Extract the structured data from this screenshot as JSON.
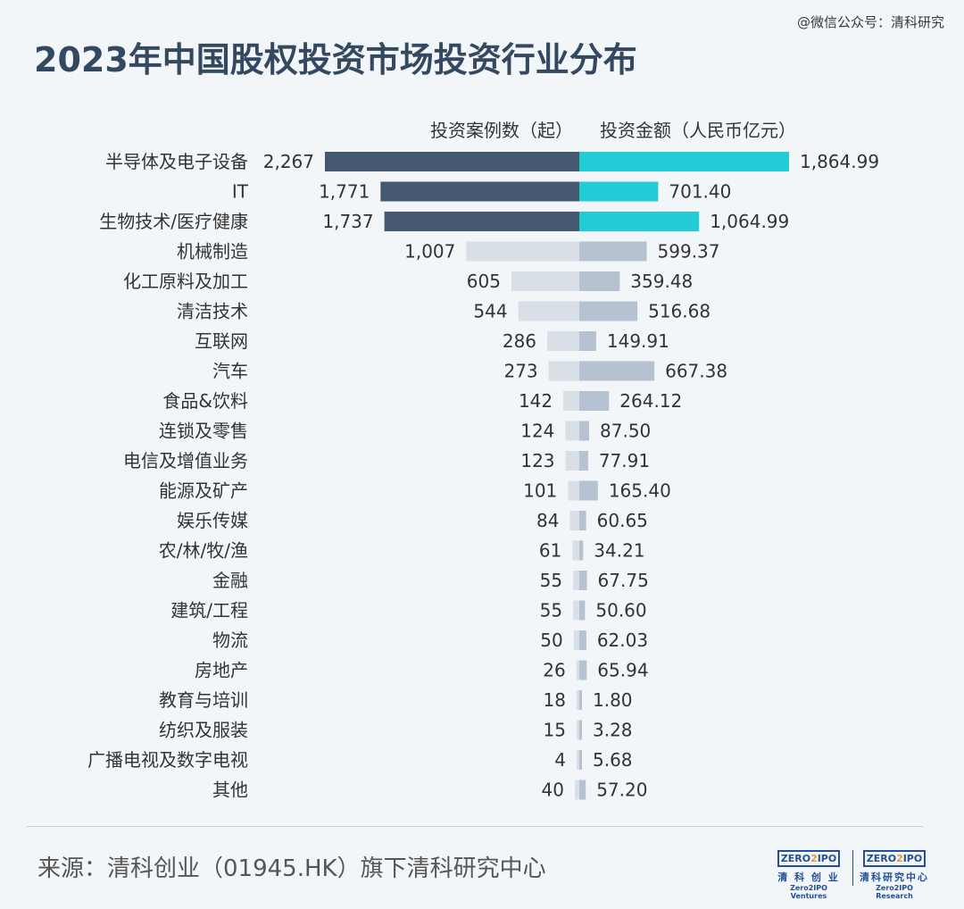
{
  "watermark": "@微信公众号：清科研究",
  "chart_data": {
    "type": "bar",
    "title": "2023年中国股权投资市场投资行业分布",
    "left_series_label": "投资案例数（起）",
    "right_series_label": "投资金额（人民币亿元）",
    "categories": [
      "半导体及电子设备",
      "IT",
      "生物技术/医疗健康",
      "机械制造",
      "化工原料及加工",
      "清洁技术",
      "互联网",
      "汽车",
      "食品&饮料",
      "连锁及零售",
      "电信及增值业务",
      "能源及矿产",
      "娱乐传媒",
      "农/林/牧/渔",
      "金融",
      "建筑/工程",
      "物流",
      "房地产",
      "教育与培训",
      "纺织及服装",
      "广播电视及数字电视",
      "其他"
    ],
    "series": [
      {
        "name": "投资案例数（起）",
        "values": [
          2267,
          1771,
          1737,
          1007,
          605,
          544,
          286,
          273,
          142,
          124,
          123,
          101,
          84,
          61,
          55,
          55,
          50,
          26,
          18,
          15,
          4,
          40
        ],
        "labels": [
          "2,267",
          "1,771",
          "1,737",
          "1,007",
          "605",
          "544",
          "286",
          "273",
          "142",
          "124",
          "123",
          "101",
          "84",
          "61",
          "55",
          "55",
          "50",
          "26",
          "18",
          "15",
          "4",
          "40"
        ]
      },
      {
        "name": "投资金额（人民币亿元）",
        "values": [
          1864.99,
          701.4,
          1064.99,
          599.37,
          359.48,
          516.68,
          149.91,
          667.38,
          264.12,
          87.5,
          77.91,
          165.4,
          60.65,
          34.21,
          67.75,
          50.6,
          62.03,
          65.94,
          1.8,
          3.28,
          5.68,
          57.2
        ],
        "labels": [
          "1,864.99",
          "701.40",
          "1,064.99",
          "599.37",
          "359.48",
          "516.68",
          "149.91",
          "667.38",
          "264.12",
          "87.50",
          "77.91",
          "165.40",
          "60.65",
          "34.21",
          "67.75",
          "50.60",
          "62.03",
          "65.94",
          "1.80",
          "3.28",
          "5.68",
          "57.20"
        ]
      }
    ],
    "highlight_count": 3,
    "colors": {
      "left_highlight": "#44586f",
      "right_highlight": "#21ccd6",
      "left_muted": "#d9dfe6",
      "right_muted": "#b6c1d1"
    }
  },
  "source": "来源：清科创业（01945.HK）旗下清科研究中心",
  "logos": [
    {
      "box_left": "ZERO",
      "box_mid": "2",
      "box_right": "IPO",
      "cn": "清 科 创 业",
      "en": "Zero2IPO Ventures"
    },
    {
      "box_left": "ZERO",
      "box_mid": "2",
      "box_right": "IPO",
      "cn": "清科研究中心",
      "en": "Zero2IPO Research"
    }
  ]
}
